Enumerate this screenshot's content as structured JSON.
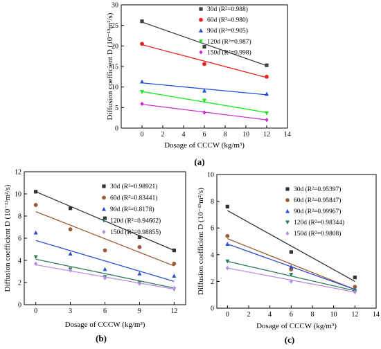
{
  "chart_data": [
    {
      "type": "scatter",
      "panel_label": "(a)",
      "xlabel": "Dosage of CCCW (kg/m³)",
      "ylabel": "Diffusion coefficient D (10⁻¹³m²/s)",
      "xlim": [
        -2,
        14
      ],
      "ylim": [
        0,
        30
      ],
      "xticks": [
        0,
        2,
        4,
        6,
        8,
        10,
        12,
        14
      ],
      "yticks": [
        0,
        5,
        10,
        15,
        20,
        25,
        30
      ],
      "legend_position": "top-right",
      "series": [
        {
          "name": "30d (R²=0.988)",
          "color": "#404040",
          "marker": "square",
          "x": [
            0,
            6,
            12
          ],
          "y": [
            26.0,
            19.8,
            15.3
          ],
          "fit": [
            25.8,
            15.2
          ]
        },
        {
          "name": "60d (R²=0.980)",
          "color": "#e8231f",
          "marker": "circle",
          "x": [
            0,
            6,
            12
          ],
          "y": [
            20.5,
            15.6,
            12.5
          ],
          "fit": [
            20.3,
            12.3
          ]
        },
        {
          "name": "90d (R²=0.905)",
          "color": "#1f4fd6",
          "marker": "triangle-up",
          "x": [
            0,
            6,
            12
          ],
          "y": [
            11.3,
            9.1,
            8.3
          ],
          "fit": [
            11.0,
            8.1
          ]
        },
        {
          "name": "120d (R²=0.987)",
          "color": "#17e81a",
          "marker": "triangle-down",
          "x": [
            0,
            6,
            12
          ],
          "y": [
            8.8,
            6.7,
            3.6
          ],
          "fit": [
            8.9,
            3.8
          ]
        },
        {
          "name": "150d (R²=0.998)",
          "color": "#c92ecf",
          "marker": "diamond",
          "x": [
            0,
            6,
            12
          ],
          "y": [
            5.9,
            3.8,
            2.0
          ],
          "fit": [
            5.8,
            2.0
          ]
        }
      ]
    },
    {
      "type": "scatter",
      "panel_label": "(b)",
      "xlabel": "Dosage of CCCW (kg/m³)",
      "ylabel": "Diffusion coefficient D (10⁻¹³m²/s)",
      "xlim": [
        -1,
        13
      ],
      "ylim": [
        0,
        12
      ],
      "xticks": [
        0,
        3,
        6,
        9,
        12
      ],
      "yticks": [
        0,
        2,
        4,
        6,
        8,
        10,
        12
      ],
      "legend_position": "top-right",
      "series": [
        {
          "name": "30d (R²=0.98921)",
          "color": "#333333",
          "marker": "square",
          "x": [
            0,
            3,
            6,
            9,
            12
          ],
          "y": [
            10.2,
            8.7,
            7.8,
            6.1,
            4.9
          ],
          "fit": [
            10.2,
            4.9
          ]
        },
        {
          "name": "60d (R²=0.83441)",
          "color": "#9b5a38",
          "marker": "circle",
          "x": [
            0,
            3,
            6,
            9,
            12
          ],
          "y": [
            9.0,
            6.8,
            4.9,
            5.2,
            3.7
          ],
          "fit": [
            8.4,
            3.5
          ]
        },
        {
          "name": "90d (R²=0.8178)",
          "color": "#2d4fcf",
          "marker": "triangle-up",
          "x": [
            0,
            3,
            6,
            9,
            12
          ],
          "y": [
            6.5,
            4.6,
            3.2,
            2.8,
            2.6
          ],
          "fit": [
            5.8,
            2.1
          ]
        },
        {
          "name": "120d (R²=0.94662)",
          "color": "#2e7a56",
          "marker": "triangle-down",
          "x": [
            0,
            3,
            6,
            9,
            12
          ],
          "y": [
            4.3,
            3.2,
            2.5,
            2.0,
            1.4
          ],
          "fit": [
            4.1,
            1.5
          ]
        },
        {
          "name": "150d (R²=0.98855)",
          "color": "#b68ee6",
          "marker": "diamond",
          "x": [
            0,
            3,
            6,
            9,
            12
          ],
          "y": [
            3.7,
            3.1,
            2.4,
            1.9,
            1.5
          ],
          "fit": [
            3.6,
            1.4
          ]
        }
      ]
    },
    {
      "type": "scatter",
      "panel_label": "(c)",
      "xlabel": "Dosage of CCCW (kg/m³)",
      "ylabel": "Diffusion coefficient D (10⁻¹³m²/s)",
      "xlim": [
        -1,
        14
      ],
      "ylim": [
        0,
        10
      ],
      "xticks": [
        0,
        2,
        4,
        6,
        8,
        10,
        12,
        14
      ],
      "yticks": [
        0,
        2,
        4,
        6,
        8,
        10
      ],
      "legend_position": "top-right",
      "series": [
        {
          "name": "30d (R²=0.95397)",
          "color": "#333333",
          "marker": "square",
          "x": [
            0,
            6,
            12
          ],
          "y": [
            7.6,
            4.2,
            2.3
          ],
          "fit": [
            7.3,
            2.0
          ]
        },
        {
          "name": "60d (R²=0.95847)",
          "color": "#9b5a38",
          "marker": "circle",
          "x": [
            0,
            6,
            12
          ],
          "y": [
            5.4,
            2.9,
            1.6
          ],
          "fit": [
            5.2,
            1.4
          ]
        },
        {
          "name": "90d (R²=0.99967)",
          "color": "#2d4fcf",
          "marker": "triangle-up",
          "x": [
            0,
            6,
            12
          ],
          "y": [
            4.8,
            3.1,
            1.4
          ],
          "fit": [
            4.8,
            1.4
          ]
        },
        {
          "name": "120d (R²=0.98344)",
          "color": "#2e7a56",
          "marker": "triangle-down",
          "x": [
            0,
            6,
            12
          ],
          "y": [
            3.5,
            2.5,
            1.3
          ],
          "fit": [
            3.5,
            1.3
          ]
        },
        {
          "name": "150d (R²=0.9808)",
          "color": "#b68ee6",
          "marker": "diamond",
          "x": [
            0,
            6,
            12
          ],
          "y": [
            3.0,
            2.0,
            1.2
          ],
          "fit": [
            3.0,
            1.2
          ]
        }
      ]
    }
  ]
}
